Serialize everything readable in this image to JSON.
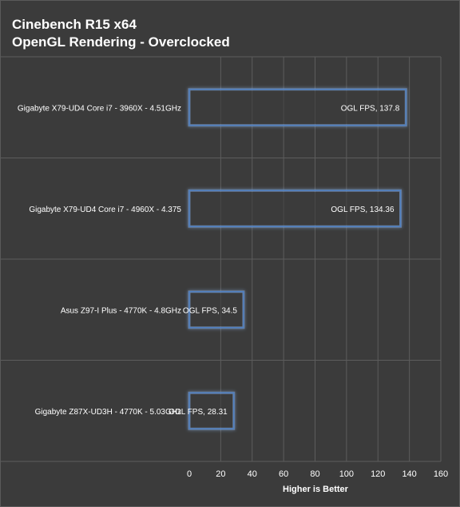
{
  "chart_data": {
    "type": "bar",
    "orientation": "horizontal",
    "title": "Cinebench R15 x64",
    "subtitle": "OpenGL Rendering - Overclocked",
    "xlabel": "Higher is Better",
    "ylabel": "",
    "categories": [
      "Gigabyte X79-UD4 Core i7 - 3960X - 4.51GHz",
      "Gigabyte X79-UD4 Core i7 - 4960X - 4.375",
      "Asus Z97-I Plus - 4770K - 4.8GHz",
      "Gigabyte Z87X-UD3H - 4770K - 5.03GHz"
    ],
    "values": [
      137.8,
      134.36,
      34.5,
      28.31
    ],
    "data_labels": [
      "OGL FPS, 137.8",
      "OGL FPS, 134.36",
      "OGL FPS, 34.5",
      "OGL FPS, 28.31"
    ],
    "xlim": [
      0,
      160
    ],
    "xticks": [
      0,
      20,
      40,
      60,
      80,
      100,
      120,
      140,
      160
    ],
    "grid": true,
    "legend": "none",
    "colors": {
      "background": "#3b3b3b",
      "bar_fill": "#3b3b3b",
      "bar_border": "#4f7fc0",
      "bar_glow": "#8fb3e6",
      "grid": "#5c5c5c",
      "text": "#ffffff"
    }
  }
}
